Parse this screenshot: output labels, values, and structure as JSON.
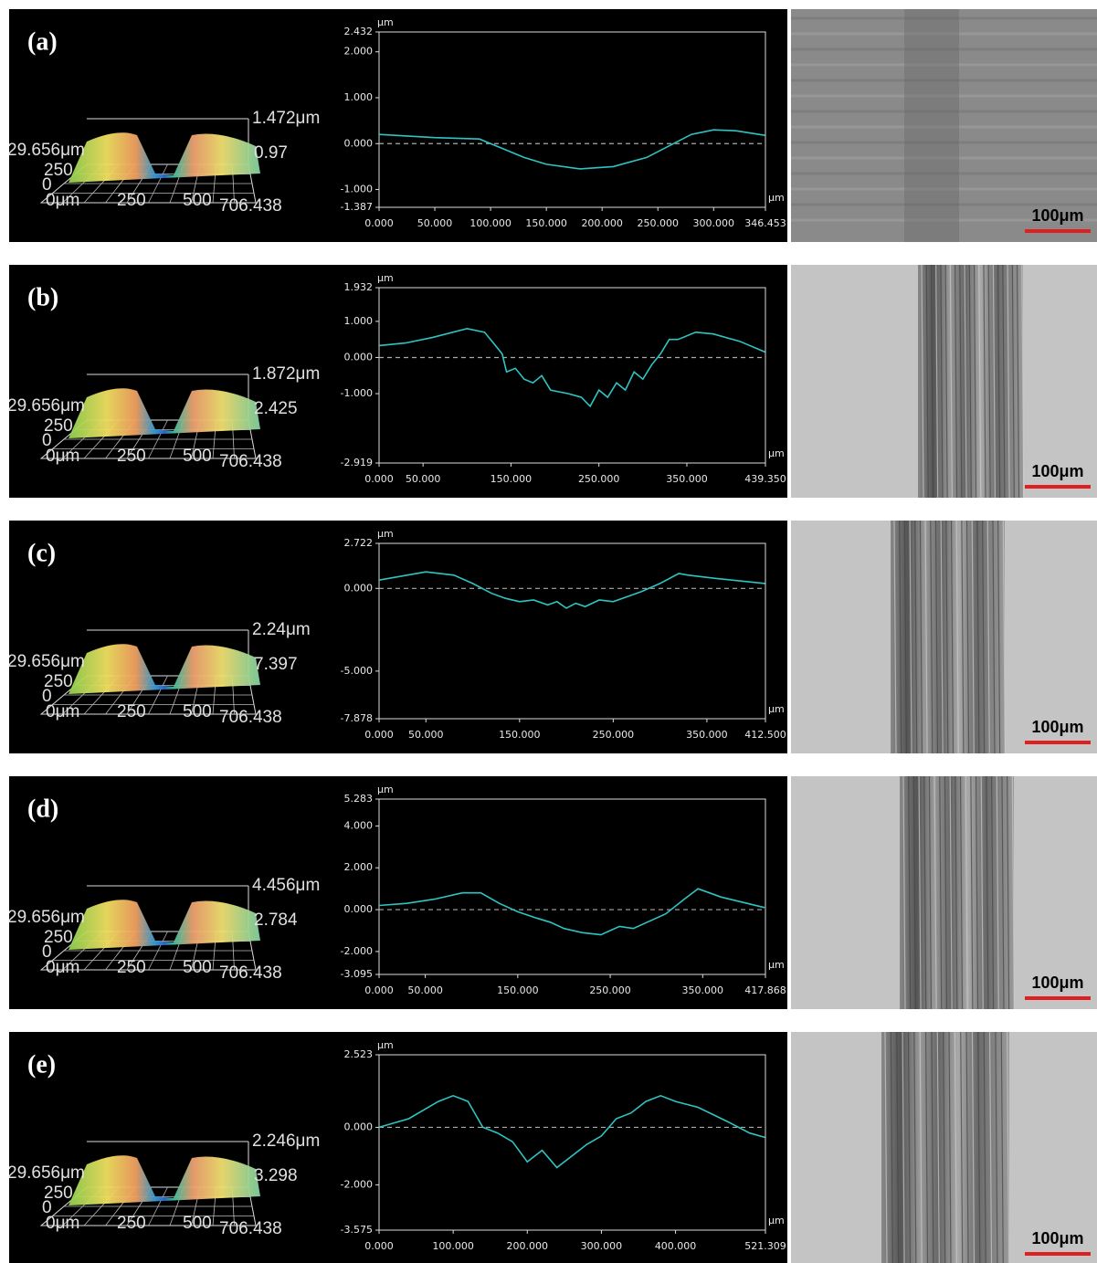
{
  "panels": [
    {
      "label": "(a)",
      "surface": {
        "top": "1.472μm",
        "width": "29.656μm",
        "bottom": "0.97",
        "y_mid": "250",
        "y_zero": "0",
        "x_zero": "0μm",
        "x_mid1": "250",
        "x_mid2": "500",
        "x_end": "706.438"
      },
      "scale_bar": "100μm"
    },
    {
      "label": "(b)",
      "surface": {
        "top": "1.872μm",
        "width": "29.656μm",
        "bottom": "2.425",
        "y_mid": "250",
        "y_zero": "0",
        "x_zero": "0μm",
        "x_mid1": "250",
        "x_mid2": "500",
        "x_end": "706.438"
      },
      "scale_bar": "100μm"
    },
    {
      "label": "(c)",
      "surface": {
        "top": "2.24μm",
        "width": "29.656μm",
        "bottom": "7.397",
        "y_mid": "250",
        "y_zero": "0",
        "x_zero": "0μm",
        "x_mid1": "250",
        "x_mid2": "500",
        "x_end": "706.438"
      },
      "scale_bar": "100μm"
    },
    {
      "label": "(d)",
      "surface": {
        "top": "4.456μm",
        "width": "29.656μm",
        "bottom": "2.784",
        "y_mid": "250",
        "y_zero": "0",
        "x_zero": "0μm",
        "x_mid1": "250",
        "x_mid2": "500",
        "x_end": "706.438"
      },
      "scale_bar": "100μm"
    },
    {
      "label": "(e)",
      "surface": {
        "top": "2.246μm",
        "width": "29.656μm",
        "bottom": "3.298",
        "y_mid": "250",
        "y_zero": "0",
        "x_zero": "0μm",
        "x_mid1": "250",
        "x_mid2": "500",
        "x_end": "706.438"
      },
      "scale_bar": "100μm"
    }
  ],
  "chart_data": [
    {
      "type": "line",
      "x_unit": "μm",
      "y_unit": "μm",
      "zero_line": true,
      "xlim": [
        0,
        346.453
      ],
      "ylim": [
        -1.387,
        2.432
      ],
      "xticks": [
        {
          "value": 0,
          "label": "0.000"
        },
        {
          "value": 50,
          "label": "50.000"
        },
        {
          "value": 100,
          "label": "100.000"
        },
        {
          "value": 150,
          "label": "150.000"
        },
        {
          "value": 200,
          "label": "200.000"
        },
        {
          "value": 250,
          "label": "250.000"
        },
        {
          "value": 300,
          "label": "300.000"
        },
        346.453
      ],
      "yticks": [
        2.432,
        {
          "value": 2,
          "label": "2.000"
        },
        {
          "value": 1,
          "label": "1.000"
        },
        {
          "value": 0,
          "label": "0.000"
        },
        {
          "value": -1,
          "label": "-1.000"
        },
        -1.387
      ],
      "x": [
        0,
        50,
        90,
        100,
        130,
        150,
        180,
        210,
        240,
        260,
        280,
        300,
        320,
        346
      ],
      "series": [
        {
          "color": "#2fc4c4",
          "values": [
            0.2,
            0.13,
            0.1,
            0.0,
            -0.3,
            -0.45,
            -0.55,
            -0.5,
            -0.3,
            -0.05,
            0.2,
            0.3,
            0.28,
            0.18
          ]
        }
      ]
    },
    {
      "type": "line",
      "x_unit": "μm",
      "y_unit": "μm",
      "zero_line": true,
      "xlim": [
        0,
        439.35
      ],
      "ylim": [
        -2.919,
        1.932
      ],
      "xticks": [
        {
          "value": 0,
          "label": "0.000"
        },
        {
          "value": 50,
          "label": "50.000"
        },
        {
          "value": 150,
          "label": "150.000"
        },
        {
          "value": 250,
          "label": "250.000"
        },
        {
          "value": 350,
          "label": "350.000"
        },
        {
          "value": 439.35,
          "label": "439.350"
        }
      ],
      "yticks": [
        1.932,
        {
          "value": 1,
          "label": "1.000"
        },
        {
          "value": 0,
          "label": "0.000"
        },
        {
          "value": -1,
          "label": "-1.000"
        },
        -2.919
      ],
      "x": [
        0,
        30,
        60,
        100,
        120,
        130,
        140,
        145,
        155,
        165,
        175,
        185,
        195,
        205,
        215,
        230,
        240,
        250,
        260,
        270,
        280,
        290,
        300,
        310,
        320,
        330,
        340,
        360,
        380,
        410,
        439
      ],
      "series": [
        {
          "color": "#2fc4c4",
          "values": [
            0.33,
            0.4,
            0.55,
            0.8,
            0.7,
            0.4,
            0.1,
            -0.4,
            -0.3,
            -0.6,
            -0.7,
            -0.5,
            -0.9,
            -0.95,
            -1.0,
            -1.1,
            -1.35,
            -0.9,
            -1.1,
            -0.7,
            -0.9,
            -0.4,
            -0.6,
            -0.2,
            0.1,
            0.5,
            0.5,
            0.7,
            0.65,
            0.45,
            0.15
          ]
        }
      ]
    },
    {
      "type": "line",
      "x_unit": "μm",
      "y_unit": "μm",
      "zero_line": true,
      "xlim": [
        0,
        412.5
      ],
      "ylim": [
        -7.878,
        2.722
      ],
      "xticks": [
        {
          "value": 0,
          "label": "0.000"
        },
        {
          "value": 50,
          "label": "50.000"
        },
        {
          "value": 150,
          "label": "150.000"
        },
        {
          "value": 250,
          "label": "250.000"
        },
        {
          "value": 350,
          "label": "350.000"
        },
        {
          "value": 412.5,
          "label": "412.500"
        }
      ],
      "yticks": [
        2.722,
        {
          "value": 0,
          "label": "0.000"
        },
        {
          "value": -5,
          "label": "-5.000"
        },
        -7.878
      ],
      "x": [
        0,
        50,
        80,
        100,
        120,
        135,
        150,
        165,
        180,
        190,
        200,
        210,
        220,
        235,
        250,
        265,
        280,
        300,
        320,
        330,
        360,
        412
      ],
      "series": [
        {
          "color": "#2fc4c4",
          "values": [
            0.5,
            1.0,
            0.8,
            0.3,
            -0.3,
            -0.6,
            -0.8,
            -0.7,
            -1.0,
            -0.8,
            -1.2,
            -0.9,
            -1.1,
            -0.7,
            -0.8,
            -0.5,
            -0.2,
            0.3,
            0.9,
            0.8,
            0.6,
            0.3
          ]
        }
      ]
    },
    {
      "type": "line",
      "x_unit": "μm",
      "y_unit": "μm",
      "zero_line": true,
      "xlim": [
        0,
        417.868
      ],
      "ylim": [
        -3.095,
        5.283
      ],
      "xticks": [
        {
          "value": 0,
          "label": "0.000"
        },
        {
          "value": 50,
          "label": "50.000"
        },
        {
          "value": 150,
          "label": "150.000"
        },
        {
          "value": 250,
          "label": "250.000"
        },
        {
          "value": 350,
          "label": "350.000"
        },
        417.868
      ],
      "yticks": [
        5.283,
        {
          "value": 4,
          "label": "4.000"
        },
        {
          "value": 2,
          "label": "2.000"
        },
        {
          "value": 0,
          "label": "0.000"
        },
        {
          "value": -2,
          "label": "-2.000"
        },
        -3.095
      ],
      "x": [
        0,
        30,
        60,
        90,
        110,
        130,
        150,
        170,
        185,
        200,
        220,
        240,
        260,
        275,
        290,
        310,
        330,
        345,
        370,
        417
      ],
      "series": [
        {
          "color": "#2fc4c4",
          "values": [
            0.2,
            0.3,
            0.5,
            0.8,
            0.8,
            0.3,
            -0.1,
            -0.4,
            -0.6,
            -0.9,
            -1.1,
            -1.2,
            -0.8,
            -0.9,
            -0.6,
            -0.2,
            0.5,
            1.0,
            0.6,
            0.1
          ]
        }
      ]
    },
    {
      "type": "line",
      "x_unit": "μm",
      "y_unit": "μm",
      "zero_line": true,
      "xlim": [
        0,
        521.309
      ],
      "ylim": [
        -3.575,
        2.523
      ],
      "xticks": [
        {
          "value": 0,
          "label": "0.000"
        },
        {
          "value": 100,
          "label": "100.000"
        },
        {
          "value": 200,
          "label": "200.000"
        },
        {
          "value": 300,
          "label": "300.000"
        },
        {
          "value": 400,
          "label": "400.000"
        },
        521.309
      ],
      "yticks": [
        2.523,
        {
          "value": 0,
          "label": "0.000"
        },
        {
          "value": -2,
          "label": "-2.000"
        },
        -3.575
      ],
      "x": [
        0,
        40,
        80,
        100,
        120,
        140,
        160,
        180,
        200,
        220,
        240,
        260,
        280,
        300,
        320,
        340,
        360,
        380,
        400,
        430,
        470,
        500,
        521
      ],
      "series": [
        {
          "color": "#2fc4c4",
          "values": [
            0,
            0.3,
            0.9,
            1.1,
            0.9,
            0.0,
            -0.2,
            -0.5,
            -1.2,
            -0.8,
            -1.4,
            -1.0,
            -0.6,
            -0.3,
            0.3,
            0.5,
            0.9,
            1.1,
            0.9,
            0.7,
            0.2,
            -0.2,
            -0.35
          ]
        }
      ]
    }
  ]
}
